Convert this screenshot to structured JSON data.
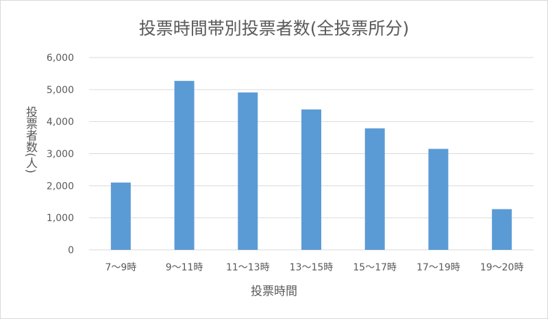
{
  "chart_data": {
    "type": "bar",
    "title": "投票時間帯別投票者数(全投票所分)",
    "xlabel": "投票時間",
    "ylabel": "投票者数(人)",
    "categories": [
      "7〜9時",
      "9〜11時",
      "11〜13時",
      "13〜15時",
      "15〜17時",
      "17〜19時",
      "19〜20時"
    ],
    "values": [
      2100,
      5270,
      4910,
      4380,
      3790,
      3150,
      1270
    ],
    "ylim": [
      0,
      6000
    ],
    "yticks": [
      "0",
      "1,000",
      "2,000",
      "3,000",
      "4,000",
      "5,000",
      "6,000"
    ],
    "grid": true,
    "legend": "none",
    "bar_color": "#5b9bd5"
  }
}
